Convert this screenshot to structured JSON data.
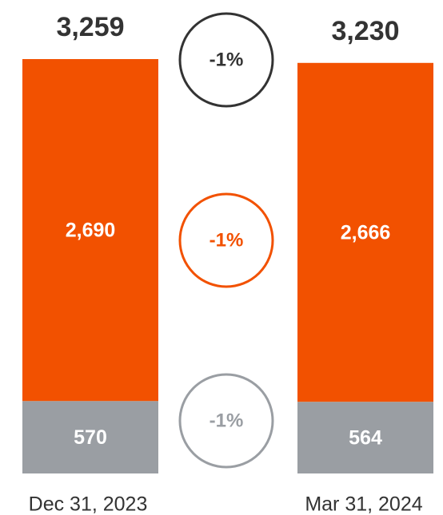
{
  "chart_data": {
    "type": "stacked_bar",
    "categories": [
      "Dec 31, 2023",
      "Mar 31, 2024"
    ],
    "series": [
      {
        "color": "#9a9ea3",
        "values": [
          570,
          564
        ],
        "value_labels": [
          "570",
          "564"
        ],
        "change": -1,
        "change_label": "-1%"
      },
      {
        "color": "#f25100",
        "values": [
          2690,
          2666
        ],
        "value_labels": [
          "2,690",
          "2,666"
        ],
        "change": -1,
        "change_label": "-1%"
      }
    ],
    "totals": {
      "color": "#333333",
      "values": [
        3259,
        3230
      ],
      "value_labels": [
        "3,259",
        "3,230"
      ],
      "change": -1,
      "change_label": "-1%"
    }
  }
}
